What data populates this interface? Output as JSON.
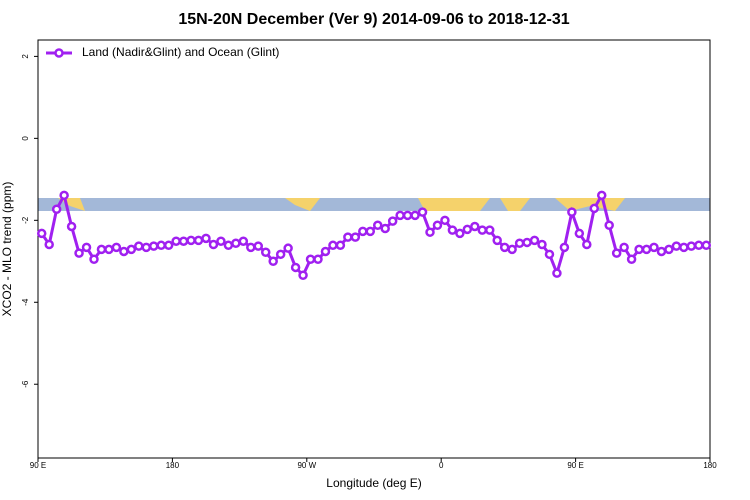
{
  "chart_data": {
    "type": "line",
    "title": "15N-20N December (Ver 9)   2014-09-06 to 2018-12-31",
    "x_label": "Longitude (deg E)",
    "y_label": "XCO2 - MLO trend (ppm)",
    "x": [
      92.5,
      97.5,
      102.5,
      107.5,
      112.5,
      117.5,
      122.5,
      127.5,
      132.5,
      137.5,
      142.5,
      147.5,
      152.5,
      157.5,
      162.5,
      167.5,
      172.5,
      177.5,
      182.5,
      187.5,
      192.5,
      197.5,
      202.5,
      207.5,
      212.5,
      217.5,
      222.5,
      227.5,
      232.5,
      237.5,
      242.5,
      247.5,
      252.5,
      257.5,
      262.5,
      267.5,
      272.5,
      277.5,
      282.5,
      287.5,
      292.5,
      297.5,
      302.5,
      307.5,
      312.5,
      317.5,
      322.5,
      327.5,
      332.5,
      337.5,
      342.5,
      347.5,
      352.5,
      357.5,
      362.5,
      367.5,
      372.5,
      377.5,
      382.5,
      387.5,
      392.5,
      397.5,
      402.5,
      407.5,
      412.5,
      417.5,
      422.5,
      427.5,
      432.5,
      437.5,
      442.5,
      447.5,
      452.5,
      457.5,
      462.5,
      467.5,
      472.5,
      477.5,
      482.5,
      487.5,
      492.5,
      497.5,
      502.5,
      507.5,
      512.5,
      517.5,
      522.5,
      527.5,
      532.5,
      537.5
    ],
    "series": [
      {
        "name": "Land (Nadir&Glint) and Ocean (Glint)",
        "color": "#a020f0",
        "values": [
          -2.32,
          -2.59,
          -1.73,
          -1.39,
          -2.15,
          -2.8,
          -2.66,
          -2.95,
          -2.71,
          -2.71,
          -2.66,
          -2.76,
          -2.71,
          -2.63,
          -2.66,
          -2.63,
          -2.61,
          -2.61,
          -2.51,
          -2.51,
          -2.49,
          -2.49,
          -2.44,
          -2.59,
          -2.51,
          -2.61,
          -2.56,
          -2.51,
          -2.66,
          -2.63,
          -2.78,
          -3.0,
          -2.83,
          -2.68,
          -3.15,
          -3.34,
          -2.95,
          -2.95,
          -2.76,
          -2.61,
          -2.61,
          -2.41,
          -2.41,
          -2.27,
          -2.27,
          -2.12,
          -2.2,
          -2.02,
          -1.88,
          -1.88,
          -1.88,
          -1.8,
          -2.29,
          -2.12,
          -2.0,
          -2.24,
          -2.32,
          -2.22,
          -2.15,
          -2.24,
          -2.24,
          -2.49,
          -2.66,
          -2.71,
          -2.56,
          -2.54,
          -2.49,
          -2.59,
          -2.83,
          -3.29,
          -2.66,
          -1.8,
          -2.32,
          -2.59,
          -1.71,
          -1.39,
          -2.12,
          -2.8,
          -2.66,
          -2.95,
          -2.71,
          -2.71,
          -2.66,
          -2.76,
          -2.71,
          -2.63,
          -2.66,
          -2.63,
          -2.61,
          -2.61
        ]
      }
    ],
    "xlim": [
      90,
      540
    ],
    "xticks": [
      {
        "value": 90,
        "label": "90 E"
      },
      180,
      {
        "value": 270,
        "label": "90 W"
      },
      {
        "value": 360,
        "label": "0"
      },
      {
        "value": 450,
        "label": "90 E"
      },
      {
        "value": 540,
        "label": "180"
      }
    ],
    "ylim": [
      -7.8,
      2.4
    ],
    "yticks": [
      2,
      0,
      -2,
      -4,
      -6
    ],
    "legend": "top-left"
  }
}
